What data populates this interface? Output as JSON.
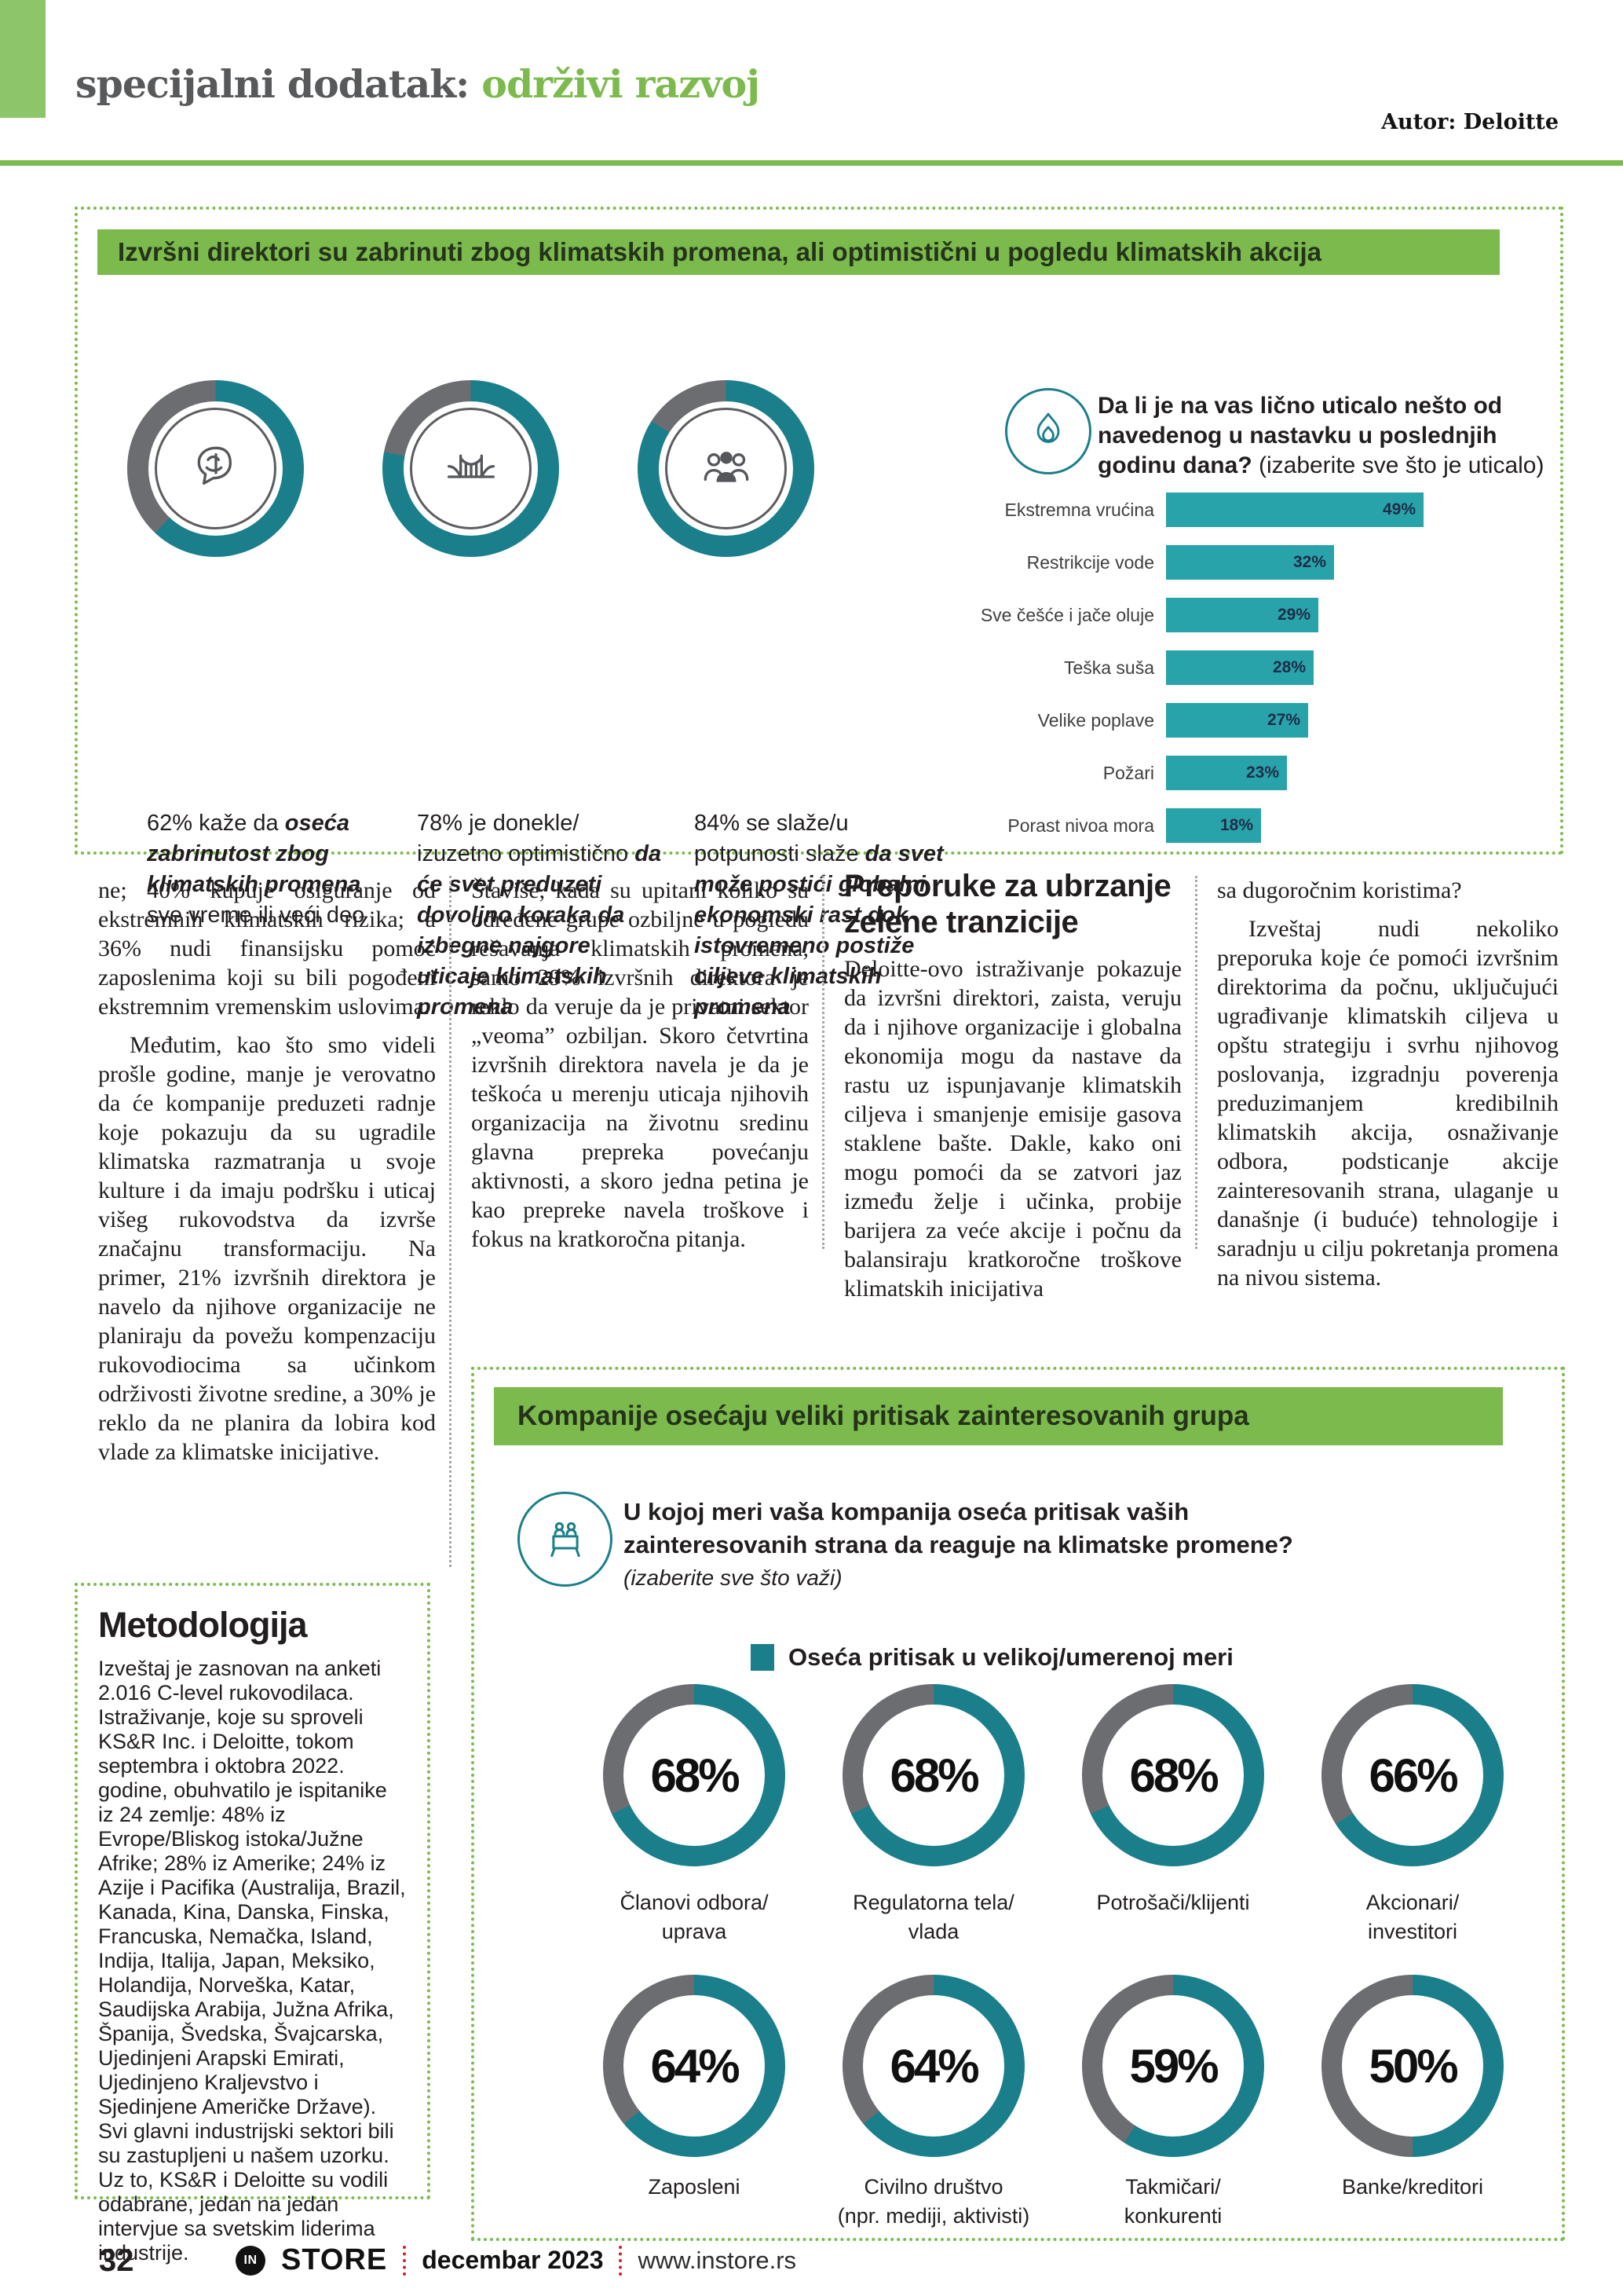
{
  "colors": {
    "green": "#7cba4d",
    "green_square": "#8dc56a",
    "teal_bar": "#28a3a9",
    "teal_donut": "#1a7f8b",
    "gray_donut": "#6b6d70",
    "bar_value_text": "#1e2c49",
    "red_dots": "#cc2127"
  },
  "header": {
    "title_gray": "specijalni dodatak:",
    "title_green": " održivi razvoj",
    "author": "Autor: Deloitte"
  },
  "section1": {
    "banner": "Izvršni direktori su zabrinuti zbog klimatskih promena, ali optimistični u pogledu klimatskih akcija",
    "stats": [
      {
        "pct": 62,
        "icon": "brain",
        "lead": "62%",
        "plain": "  kaže da ",
        "emph": "oseća zabrinutost zbog klimatskih promena",
        "tail": " sve vreme ili veći deo"
      },
      {
        "pct": 78,
        "icon": "bridge",
        "lead": "78%",
        "plain": "  je donekle/ izuzetno optimistično ",
        "emph": "da će svet preduzeti dovoljno koraka da izbegne najgore uticaje klimatskih promena",
        "tail": ""
      },
      {
        "pct": 84,
        "icon": "people",
        "lead": "84%",
        "plain": " se slaže/u potpunosti slaže ",
        "emph": "da svet može postići globalni ekonomski rast dok istovremeno postiže ciljeve klimatskih promena",
        "tail": ""
      }
    ],
    "question_bold": "Da li je na vas lično uticalo nešto od navedenog u nastavku u poslednjih godinu dana?",
    "question_note": " (izaberite sve što je uticalo)",
    "chart": {
      "type": "bar",
      "bars": [
        {
          "label": "Ekstremna vrućina",
          "value": 49,
          "display": "49%"
        },
        {
          "label": "Restrikcije vode",
          "value": 32,
          "display": "32%"
        },
        {
          "label": "Sve češće i jače oluje",
          "value": 29,
          "display": "29%"
        },
        {
          "label": "Teška suša",
          "value": 28,
          "display": "28%"
        },
        {
          "label": "Velike poplave",
          "value": 27,
          "display": "27%"
        },
        {
          "label": "Požari",
          "value": 23,
          "display": "23%"
        },
        {
          "label": "Porast nivoa mora",
          "value": 18,
          "display": "18%"
        }
      ]
    }
  },
  "articles": {
    "col1": {
      "p1": "ne; 40% kupuje osiguranje od ekstremnih klimatskih rizika; a 36% nudi finansijsku pomoć zaposlenima koji su bili pogođeni ekstremnim vremenskim uslovima.",
      "p2": "Međutim, kao što smo videli prošle godine, manje je verovatno da će kompanije preduzeti radnje koje pokazuju da su ugradile klimatska razmatranja u svoje kulture i da imaju podršku i uticaj višeg rukovodstva da izvrše značajnu transformaciju. Na primer, 21% izvršnih direktora je navelo da njihove organizacije ne planiraju da povežu kompenzaciju rukovodiocima sa učinkom održivosti životne sredine, a 30% je reklo da ne planira da lobira kod vlade za klimatske inicijative."
    },
    "col2": {
      "p1": "Štaviše, kada su upitani koliko su određene grupe ozbiljne u pogledu rešavanja klimatskih promena, samo 29% izvršnih direktora je reklo da veruje da je privatni sektor „veoma” ozbiljan. Skoro četvrtina izvršnih direktora navela je da je teškoća u merenju uticaja njihovih organizacija na životnu sredinu glavna prepreka povećanju aktivnosti, a skoro jedna petina je kao prepreke navela troškove i fokus na kratkoročna pitanja."
    },
    "col3": {
      "heading": "Preporuke za ubrzanje zelene tranzicije",
      "p1": "Deloitte-ovo istraživanje pokazuje da izvršni direktori, zaista, veruju da i njihove organizacije i globalna ekonomija mogu da nastave da rastu uz ispunjavanje klimatskih ciljeva i smanjenje emisije gasova staklene bašte. Dakle, kako oni mogu pomoći da se zatvori jaz između želje i učinka, probije barijera za veće akcije i počnu da balansiraju kratkoročne troškove klimatskih inicijativa"
    },
    "col4": {
      "p1": "sa dugoročnim koristima?",
      "p2": "Izveštaj nudi nekoliko preporuka koje će pomoći izvršnim direktorima da počnu, uključujući ugrađivanje klimatskih ciljeva u opštu strategiju i svrhu njihovog poslovanja, izgradnju poverenja preduzimanjem kredibilnih klimatskih akcija, osnaživanje odbora, podsticanje akcije zainteresovanih strana, ulaganje u današnje (i buduće) tehnologije i saradnju u cilju pokretanja promena na nivou sistema."
    }
  },
  "methodology": {
    "heading": "Metodologija",
    "body": "Izveštaj je zasnovan na anketi 2.016 C-level rukovodilaca. Istraživanje, koje su sproveli KS&R Inc. i Deloitte, tokom septembra i oktobra 2022. godine, obuhvatilo je ispitanike iz 24 zemlje: 48% iz Evrope/Bliskog istoka/Južne Afrike; 28% iz Amerike; 24% iz Azije i Pacifika (Australija, Brazil, Kanada, Kina, Danska, Finska, Francuska, Nemačka, Island, Indija, Italija, Japan, Meksiko, Holandija, Norveška, Katar, Saudijska Arabija, Južna Afrika, Španija, Švedska, Švajcarska, Ujedinjeni Arapski Emirati, Ujedinjeno Kraljevstvo i Sjedinjene Američke Države).  Svi glavni industrijski sektori bili su zastupljeni u našem uzorku. Uz to, KS&R i Deloitte su vodili odabrane, jedan na jedan intervjue sa svetskim liderima industrije."
  },
  "section2": {
    "banner": "Kompanije osećaju veliki pritisak zainteresovanih grupa",
    "question_line1": "U kojoj meri vaša kompanija oseća pritisak vaših",
    "question_line2": "zainteresovanih strana da reaguje na klimatske promene?",
    "question_note": "(izaberite sve što važi)",
    "legend": "Oseća pritisak u velikoj/umerenoj meri",
    "donuts": [
      {
        "pct": 68,
        "display": "68%",
        "label_1": "Članovi odbora/",
        "label_2": "uprava"
      },
      {
        "pct": 68,
        "display": "68%",
        "label_1": "Regulatorna tela/",
        "label_2": "vlada"
      },
      {
        "pct": 68,
        "display": "68%",
        "label_1": "Potrošači/klijenti",
        "label_2": ""
      },
      {
        "pct": 66,
        "display": "66%",
        "label_1": "Akcionari/",
        "label_2": "investitori"
      },
      {
        "pct": 64,
        "display": "64%",
        "label_1": "Zaposleni",
        "label_2": ""
      },
      {
        "pct": 64,
        "display": "64%",
        "label_1": "Civilno društvo",
        "label_2": "(npr. mediji, aktivisti)"
      },
      {
        "pct": 59,
        "display": "59%",
        "label_1": "Takmičari/",
        "label_2": "konkurenti"
      },
      {
        "pct": 50,
        "display": "50%",
        "label_1": "Banke/kreditori",
        "label_2": ""
      }
    ]
  },
  "footer": {
    "page_number": "32",
    "brand_mark": "IN",
    "brand": "STORE",
    "date": "decembar 2023",
    "website": "www.instore.rs"
  },
  "chart_data": [
    {
      "type": "bar",
      "orientation": "horizontal",
      "title": "Da li je na vas lično uticalo nešto od navedenog u nastavku u poslednjih godinu dana? (izaberite sve što je uticalo)",
      "categories": [
        "Ekstremna vrućina",
        "Restrikcije vode",
        "Sve češće i jače oluje",
        "Teška suša",
        "Velike poplave",
        "Požari",
        "Porast nivoa mora"
      ],
      "values": [
        49,
        32,
        29,
        28,
        27,
        23,
        18
      ],
      "unit": "%",
      "xlim": [
        0,
        50
      ],
      "bar_color": "#28a3a9"
    },
    {
      "type": "pie",
      "subtype": "donut-single-value",
      "title": "Izvršni direktori su zabrinuti zbog klimatskih promena, ali optimistični u pogledu klimatskih akcija",
      "categories": [
        "oseća zabrinutost zbog klimatskih promena",
        "optimistično da će svet preduzeti dovoljno koraka",
        "slaže se da svet može postići globalni ekonomski rast uz klimatske ciljeve"
      ],
      "values": [
        62,
        78,
        84
      ],
      "unit": "%"
    },
    {
      "type": "pie",
      "subtype": "donut-grid",
      "title": "U kojoj meri vaša kompanija oseća pritisak vaših zainteresovanih strana da reaguje na klimatske promene? (izaberite sve što važi)",
      "legend": [
        "Oseća pritisak u velikoj/umerenoj meri"
      ],
      "categories": [
        "Članovi odbora/uprava",
        "Regulatorna tela/vlada",
        "Potrošači/klijenti",
        "Akcionari/investitori",
        "Zaposleni",
        "Civilno društvo (npr. mediji, aktivisti)",
        "Takmičari/konkurenti",
        "Banke/kreditori"
      ],
      "values": [
        68,
        68,
        68,
        66,
        64,
        64,
        59,
        50
      ],
      "unit": "%",
      "colors": {
        "filled": "#1a7f8b",
        "rest": "#6b6d70"
      }
    }
  ]
}
